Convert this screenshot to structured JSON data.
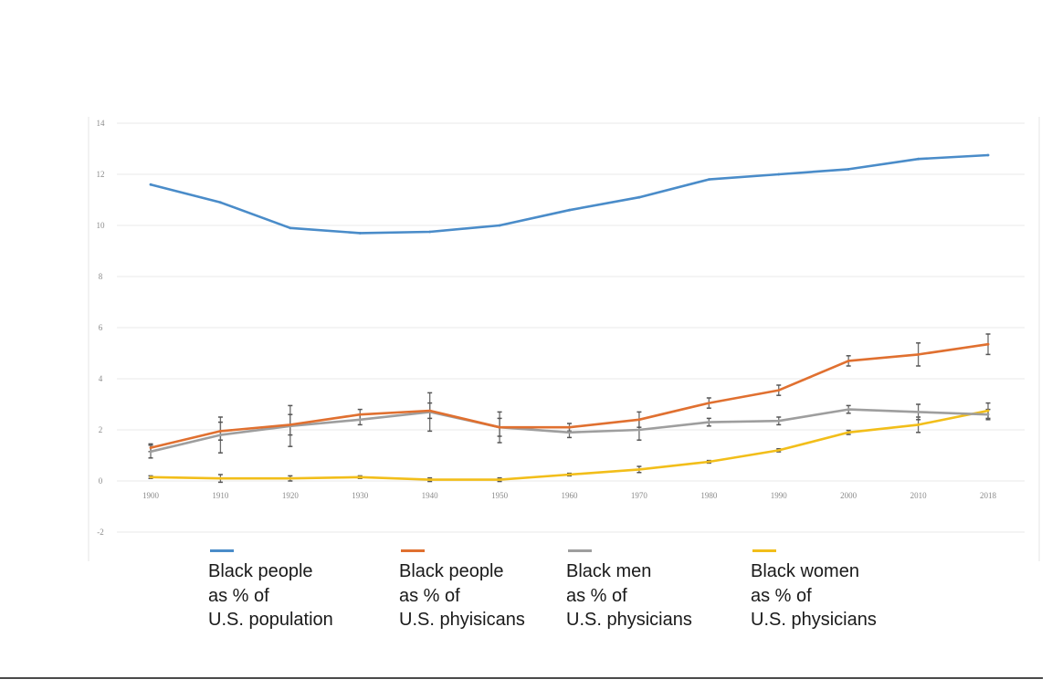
{
  "chart_data": {
    "type": "line",
    "title": "",
    "xlabel": "",
    "ylabel": "",
    "categories": [
      "1900",
      "1910",
      "1920",
      "1930",
      "1940",
      "1950",
      "1960",
      "1970",
      "1980",
      "1990",
      "2000",
      "2010",
      "2018"
    ],
    "y_ticks": [
      -2,
      0,
      2,
      4,
      6,
      8,
      10,
      12,
      14
    ],
    "ylim": [
      -2,
      14
    ],
    "grid": true,
    "legend_position": "bottom",
    "series": [
      {
        "name": "Black people as % of U.S. population",
        "legend_lines": [
          "Black people",
          "as % of",
          "U.S. population"
        ],
        "color": "#4a8cc9",
        "values": [
          11.6,
          10.9,
          9.9,
          9.7,
          9.75,
          10.0,
          10.6,
          11.1,
          11.8,
          12.0,
          12.2,
          12.6,
          12.75
        ],
        "error": null
      },
      {
        "name": "Black people as % of U.S. phyisicans",
        "legend_lines": [
          "Black people",
          "as % of",
          "U.S. phyisicans"
        ],
        "color": "#e07030",
        "values": [
          1.3,
          1.95,
          2.2,
          2.6,
          2.75,
          2.1,
          2.1,
          2.4,
          3.05,
          3.55,
          4.7,
          4.95,
          5.35
        ],
        "error": [
          0.15,
          0.35,
          0.4,
          0.2,
          0.3,
          0.35,
          0.15,
          0.3,
          0.2,
          0.2,
          0.2,
          0.45,
          0.4
        ]
      },
      {
        "name": "Black men as % of U.S. physicians",
        "legend_lines": [
          "Black men",
          "as % of",
          "U.S. physicians"
        ],
        "color": "#9e9e9e",
        "values": [
          1.15,
          1.8,
          2.15,
          2.4,
          2.7,
          2.1,
          1.9,
          2.0,
          2.3,
          2.35,
          2.8,
          2.7,
          2.6
        ],
        "error": [
          0.25,
          0.7,
          0.8,
          0.2,
          0.75,
          0.6,
          0.2,
          0.4,
          0.15,
          0.15,
          0.15,
          0.3,
          0.2
        ]
      },
      {
        "name": "Black women as % of U.S. physicians",
        "legend_lines": [
          "Black women",
          "as % of",
          "U.S. physicians"
        ],
        "color": "#f2be1a",
        "values": [
          0.15,
          0.1,
          0.1,
          0.15,
          0.05,
          0.05,
          0.25,
          0.45,
          0.75,
          1.2,
          1.9,
          2.2,
          2.75
        ],
        "error": [
          0.05,
          0.15,
          0.1,
          0.05,
          0.07,
          0.07,
          0.05,
          0.12,
          0.05,
          0.06,
          0.08,
          0.3,
          0.3
        ]
      }
    ]
  }
}
